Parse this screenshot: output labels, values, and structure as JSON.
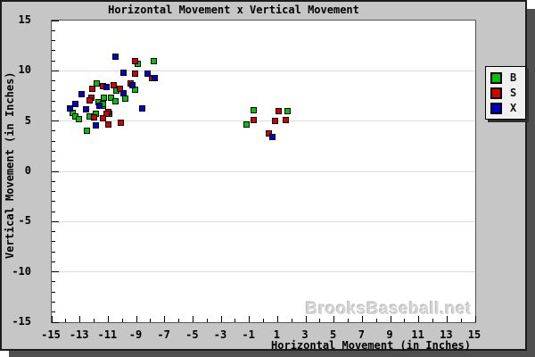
{
  "watermark": "BrooksBaseball.net",
  "colors": {
    "panel_bg": "#c6c6c6",
    "plot_bg": "#ffffff",
    "grid": "#dcdcdc",
    "shadow": "#4f4f4f",
    "series_B": "#00c400",
    "series_S": "#d40000",
    "series_X": "#0000cc"
  },
  "chart_data": {
    "type": "scatter",
    "title": "Horizontal Movement x Vertical Movement",
    "xlabel": "Horizontal Movement (in Inches)",
    "ylabel": "Vertical Movement (in Inches)",
    "xlim": [
      -15,
      15
    ],
    "ylim": [
      -15,
      15
    ],
    "x_tick_labels": [
      -15,
      -13,
      -11,
      -9,
      -7,
      -5,
      -3,
      -1,
      1,
      3,
      5,
      7,
      9,
      11,
      13,
      15
    ],
    "y_tick_labels": [
      -15,
      -10,
      -5,
      0,
      5,
      10,
      15
    ],
    "minor_tick_step": 1,
    "grid_y": [
      -10,
      -5,
      0,
      5,
      10
    ],
    "grid": "horizontal-major-only",
    "legend_position": "right-outside",
    "marker": "square",
    "series": [
      {
        "name": "B",
        "color": "#00c400",
        "points": [
          [
            -8.9,
            10.7
          ],
          [
            -7.8,
            11.0
          ],
          [
            -9.1,
            8.1
          ],
          [
            -11.8,
            8.7
          ],
          [
            -10.4,
            8.0
          ],
          [
            -11.3,
            7.3
          ],
          [
            -10.8,
            7.3
          ],
          [
            -10.5,
            7.0
          ],
          [
            -11.4,
            6.5
          ],
          [
            -11.9,
            5.7
          ],
          [
            -13.5,
            5.8
          ],
          [
            -13.3,
            5.5
          ],
          [
            -13.1,
            5.2
          ],
          [
            -12.3,
            5.5
          ],
          [
            -10.9,
            5.7
          ],
          [
            -12.5,
            4.0
          ],
          [
            -11.7,
            6.9
          ],
          [
            -11.4,
            6.7
          ],
          [
            -9.8,
            7.2
          ],
          [
            -0.7,
            6.1
          ],
          [
            -1.2,
            4.7
          ],
          [
            1.7,
            6.0
          ]
        ]
      },
      {
        "name": "S",
        "color": "#d40000",
        "points": [
          [
            -9.1,
            11.0
          ],
          [
            -9.1,
            9.7
          ],
          [
            -7.9,
            9.3
          ],
          [
            -12.1,
            8.2
          ],
          [
            -11.4,
            8.5
          ],
          [
            -10.6,
            8.6
          ],
          [
            -10.2,
            8.2
          ],
          [
            -12.2,
            7.3
          ],
          [
            -11.0,
            5.9
          ],
          [
            -11.1,
            5.7
          ],
          [
            -12.3,
            7.1
          ],
          [
            -12.0,
            5.4
          ],
          [
            -11.4,
            5.3
          ],
          [
            -11.0,
            4.7
          ],
          [
            -10.1,
            4.8
          ],
          [
            -9.4,
            8.7
          ],
          [
            -0.7,
            5.1
          ],
          [
            1.1,
            6.0
          ],
          [
            0.8,
            5.0
          ],
          [
            1.6,
            5.1
          ],
          [
            0.4,
            3.8
          ]
        ]
      },
      {
        "name": "X",
        "color": "#0000cc",
        "points": [
          [
            -10.5,
            11.4
          ],
          [
            -9.9,
            9.8
          ],
          [
            -8.2,
            9.7
          ],
          [
            -7.7,
            9.3
          ],
          [
            -9.3,
            8.6
          ],
          [
            -8.6,
            6.3
          ],
          [
            -9.9,
            7.8
          ],
          [
            -11.1,
            8.4
          ],
          [
            -11.6,
            6.5
          ],
          [
            -13.3,
            6.7
          ],
          [
            -13.7,
            6.3
          ],
          [
            -12.6,
            6.2
          ],
          [
            -12.9,
            7.7
          ],
          [
            -11.9,
            4.6
          ],
          [
            0.6,
            3.4
          ]
        ]
      }
    ]
  }
}
